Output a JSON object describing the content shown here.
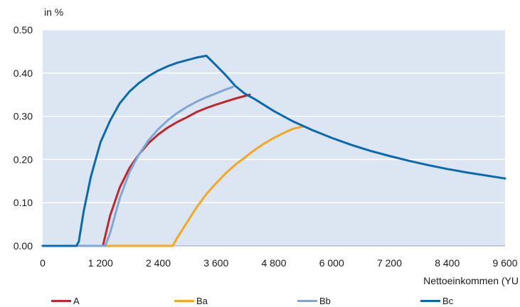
{
  "chart_data": {
    "type": "line",
    "ylabel": "in %",
    "xlabel": "Nettoeinkommen (YU",
    "xlim": [
      0,
      9600
    ],
    "ylim": [
      0,
      0.5
    ],
    "x_ticks": [
      "0",
      "1 200",
      "2 400",
      "3 600",
      "4 800",
      "6 000",
      "7 200",
      "8 400",
      "9 600"
    ],
    "y_ticks": [
      "0.00",
      "0.10",
      "0.20",
      "0.30",
      "0.40",
      "0.50"
    ],
    "grid": true,
    "legend_position": "bottom",
    "background_color": "#dce6f2",
    "series": [
      {
        "name": "A",
        "color": "#c0272d",
        "points": [
          [
            0,
            0
          ],
          [
            1250,
            0
          ],
          [
            1400,
            0.07
          ],
          [
            1600,
            0.135
          ],
          [
            1800,
            0.18
          ],
          [
            2000,
            0.212
          ],
          [
            2200,
            0.238
          ],
          [
            2400,
            0.258
          ],
          [
            2600,
            0.274
          ],
          [
            2800,
            0.287
          ],
          [
            3000,
            0.298
          ],
          [
            3200,
            0.31
          ],
          [
            3400,
            0.319
          ],
          [
            3600,
            0.327
          ],
          [
            3800,
            0.334
          ],
          [
            4000,
            0.341
          ],
          [
            4200,
            0.347
          ],
          [
            4300,
            0.35
          ]
        ]
      },
      {
        "name": "Ba",
        "color": "#f5a623",
        "points": [
          [
            0,
            0
          ],
          [
            2700,
            0
          ],
          [
            2800,
            0.02
          ],
          [
            3000,
            0.055
          ],
          [
            3200,
            0.09
          ],
          [
            3400,
            0.12
          ],
          [
            3600,
            0.145
          ],
          [
            3800,
            0.168
          ],
          [
            4000,
            0.188
          ],
          [
            4200,
            0.205
          ],
          [
            4400,
            0.222
          ],
          [
            4600,
            0.237
          ],
          [
            4800,
            0.25
          ],
          [
            5000,
            0.261
          ],
          [
            5200,
            0.271
          ],
          [
            5400,
            0.276
          ]
        ]
      },
      {
        "name": "Bb",
        "color": "#7fa7d6",
        "points": [
          [
            0,
            0
          ],
          [
            1300,
            0
          ],
          [
            1400,
            0.03
          ],
          [
            1600,
            0.11
          ],
          [
            1800,
            0.17
          ],
          [
            2000,
            0.212
          ],
          [
            2200,
            0.245
          ],
          [
            2400,
            0.27
          ],
          [
            2600,
            0.291
          ],
          [
            2800,
            0.308
          ],
          [
            3000,
            0.322
          ],
          [
            3200,
            0.334
          ],
          [
            3400,
            0.344
          ],
          [
            3600,
            0.353
          ],
          [
            3800,
            0.362
          ],
          [
            3950,
            0.368
          ]
        ]
      },
      {
        "name": "Bc",
        "color": "#0b6aaf",
        "points": [
          [
            0,
            0
          ],
          [
            700,
            0
          ],
          [
            750,
            0.01
          ],
          [
            850,
            0.08
          ],
          [
            1000,
            0.16
          ],
          [
            1200,
            0.24
          ],
          [
            1400,
            0.29
          ],
          [
            1600,
            0.33
          ],
          [
            1800,
            0.357
          ],
          [
            2000,
            0.377
          ],
          [
            2200,
            0.393
          ],
          [
            2400,
            0.406
          ],
          [
            2600,
            0.416
          ],
          [
            2800,
            0.424
          ],
          [
            3000,
            0.43
          ],
          [
            3200,
            0.436
          ],
          [
            3400,
            0.44
          ],
          [
            3600,
            0.418
          ],
          [
            3800,
            0.395
          ],
          [
            4000,
            0.37
          ],
          [
            4200,
            0.352
          ],
          [
            4400,
            0.34
          ],
          [
            4800,
            0.312
          ],
          [
            5200,
            0.288
          ],
          [
            5600,
            0.268
          ],
          [
            6000,
            0.25
          ],
          [
            6400,
            0.234
          ],
          [
            6800,
            0.22
          ],
          [
            7200,
            0.208
          ],
          [
            7600,
            0.197
          ],
          [
            8000,
            0.187
          ],
          [
            8400,
            0.178
          ],
          [
            8800,
            0.17
          ],
          [
            9200,
            0.163
          ],
          [
            9600,
            0.156
          ]
        ]
      }
    ]
  }
}
